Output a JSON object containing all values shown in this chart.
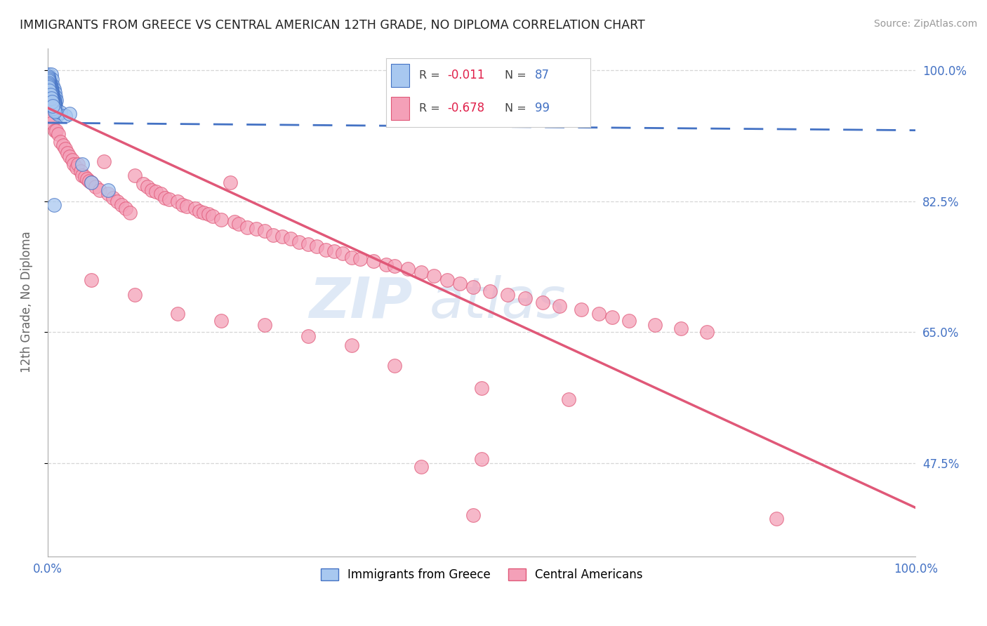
{
  "title": "IMMIGRANTS FROM GREECE VS CENTRAL AMERICAN 12TH GRADE, NO DIPLOMA CORRELATION CHART",
  "source": "Source: ZipAtlas.com",
  "ylabel": "12th Grade, No Diploma",
  "legend_label1": "Immigrants from Greece",
  "legend_label2": "Central Americans",
  "R1": "-0.011",
  "N1": "87",
  "R2": "-0.678",
  "N2": "99",
  "color_greece": "#A8C8F0",
  "color_central": "#F4A0B8",
  "color_greece_line": "#4472C4",
  "color_central_line": "#E05878",
  "watermark_zip": "ZIP",
  "watermark_atlas": "atlas",
  "background_color": "#FFFFFF",
  "greece_x": [
    0.001,
    0.002,
    0.003,
    0.004,
    0.005,
    0.006,
    0.007,
    0.008,
    0.009,
    0.01,
    0.001,
    0.002,
    0.003,
    0.004,
    0.005,
    0.006,
    0.007,
    0.008,
    0.009,
    0.01,
    0.001,
    0.002,
    0.003,
    0.004,
    0.005,
    0.006,
    0.007,
    0.008,
    0.009,
    0.01,
    0.001,
    0.002,
    0.003,
    0.004,
    0.005,
    0.006,
    0.007,
    0.008,
    0.009,
    0.011,
    0.001,
    0.002,
    0.003,
    0.004,
    0.005,
    0.006,
    0.007,
    0.008,
    0.009,
    0.012,
    0.001,
    0.002,
    0.003,
    0.004,
    0.005,
    0.006,
    0.007,
    0.008,
    0.015,
    0.02,
    0.001,
    0.002,
    0.003,
    0.004,
    0.005,
    0.006,
    0.007,
    0.008,
    0.025,
    0.04,
    0.001,
    0.002,
    0.003,
    0.004,
    0.005,
    0.006,
    0.007,
    0.008,
    0.05,
    0.07,
    0.001,
    0.002,
    0.003,
    0.004,
    0.005,
    0.006,
    0.007
  ],
  "greece_y": [
    0.995,
    0.99,
    0.985,
    0.995,
    0.988,
    0.98,
    0.975,
    0.97,
    0.965,
    0.96,
    0.992,
    0.987,
    0.982,
    0.978,
    0.973,
    0.968,
    0.963,
    0.958,
    0.953,
    0.948,
    0.99,
    0.985,
    0.98,
    0.975,
    0.97,
    0.965,
    0.96,
    0.955,
    0.95,
    0.945,
    0.988,
    0.983,
    0.978,
    0.973,
    0.968,
    0.963,
    0.958,
    0.953,
    0.948,
    0.943,
    0.986,
    0.981,
    0.976,
    0.971,
    0.966,
    0.961,
    0.956,
    0.951,
    0.946,
    0.941,
    0.984,
    0.979,
    0.974,
    0.969,
    0.964,
    0.959,
    0.954,
    0.949,
    0.944,
    0.939,
    0.982,
    0.977,
    0.972,
    0.967,
    0.962,
    0.957,
    0.952,
    0.947,
    0.942,
    0.875,
    0.98,
    0.975,
    0.97,
    0.965,
    0.96,
    0.955,
    0.95,
    0.945,
    0.85,
    0.84,
    0.978,
    0.973,
    0.968,
    0.963,
    0.958,
    0.953,
    0.82
  ],
  "central_x": [
    0.001,
    0.003,
    0.005,
    0.008,
    0.01,
    0.012,
    0.015,
    0.018,
    0.02,
    0.023,
    0.025,
    0.028,
    0.03,
    0.033,
    0.035,
    0.038,
    0.04,
    0.043,
    0.045,
    0.048,
    0.05,
    0.055,
    0.06,
    0.065,
    0.07,
    0.075,
    0.08,
    0.085,
    0.09,
    0.095,
    0.1,
    0.11,
    0.115,
    0.12,
    0.125,
    0.13,
    0.135,
    0.14,
    0.15,
    0.155,
    0.16,
    0.17,
    0.175,
    0.18,
    0.185,
    0.19,
    0.2,
    0.21,
    0.215,
    0.22,
    0.23,
    0.24,
    0.25,
    0.26,
    0.27,
    0.28,
    0.29,
    0.3,
    0.31,
    0.32,
    0.33,
    0.34,
    0.35,
    0.36,
    0.375,
    0.39,
    0.4,
    0.415,
    0.43,
    0.445,
    0.46,
    0.475,
    0.49,
    0.51,
    0.53,
    0.55,
    0.57,
    0.59,
    0.615,
    0.635,
    0.65,
    0.67,
    0.7,
    0.73,
    0.76,
    0.05,
    0.1,
    0.15,
    0.2,
    0.25,
    0.3,
    0.35,
    0.4,
    0.5,
    0.6,
    0.5,
    0.43,
    0.84,
    0.49
  ],
  "central_y": [
    0.95,
    0.94,
    0.93,
    0.92,
    0.92,
    0.915,
    0.905,
    0.9,
    0.895,
    0.89,
    0.885,
    0.88,
    0.875,
    0.87,
    0.875,
    0.865,
    0.86,
    0.858,
    0.855,
    0.852,
    0.85,
    0.845,
    0.84,
    0.878,
    0.835,
    0.83,
    0.825,
    0.82,
    0.815,
    0.81,
    0.86,
    0.848,
    0.845,
    0.84,
    0.838,
    0.835,
    0.83,
    0.828,
    0.825,
    0.82,
    0.818,
    0.815,
    0.812,
    0.81,
    0.808,
    0.805,
    0.8,
    0.85,
    0.798,
    0.795,
    0.79,
    0.788,
    0.785,
    0.78,
    0.778,
    0.775,
    0.77,
    0.768,
    0.765,
    0.76,
    0.758,
    0.755,
    0.75,
    0.748,
    0.745,
    0.74,
    0.738,
    0.735,
    0.73,
    0.725,
    0.72,
    0.715,
    0.71,
    0.705,
    0.7,
    0.695,
    0.69,
    0.685,
    0.68,
    0.675,
    0.67,
    0.665,
    0.66,
    0.655,
    0.65,
    0.72,
    0.7,
    0.675,
    0.665,
    0.66,
    0.645,
    0.632,
    0.605,
    0.575,
    0.56,
    0.48,
    0.47,
    0.4,
    0.405
  ],
  "greece_line_x": [
    0.0,
    1.0
  ],
  "greece_line_y": [
    0.93,
    0.92
  ],
  "central_line_x": [
    0.0,
    1.0
  ],
  "central_line_y": [
    0.95,
    0.415
  ],
  "xlim": [
    0.0,
    1.0
  ],
  "ylim": [
    0.35,
    1.03
  ],
  "ytick_vals": [
    1.0,
    0.825,
    0.65,
    0.475
  ],
  "ytick_labels": [
    "100.0%",
    "82.5%",
    "65.0%",
    "47.5%"
  ]
}
